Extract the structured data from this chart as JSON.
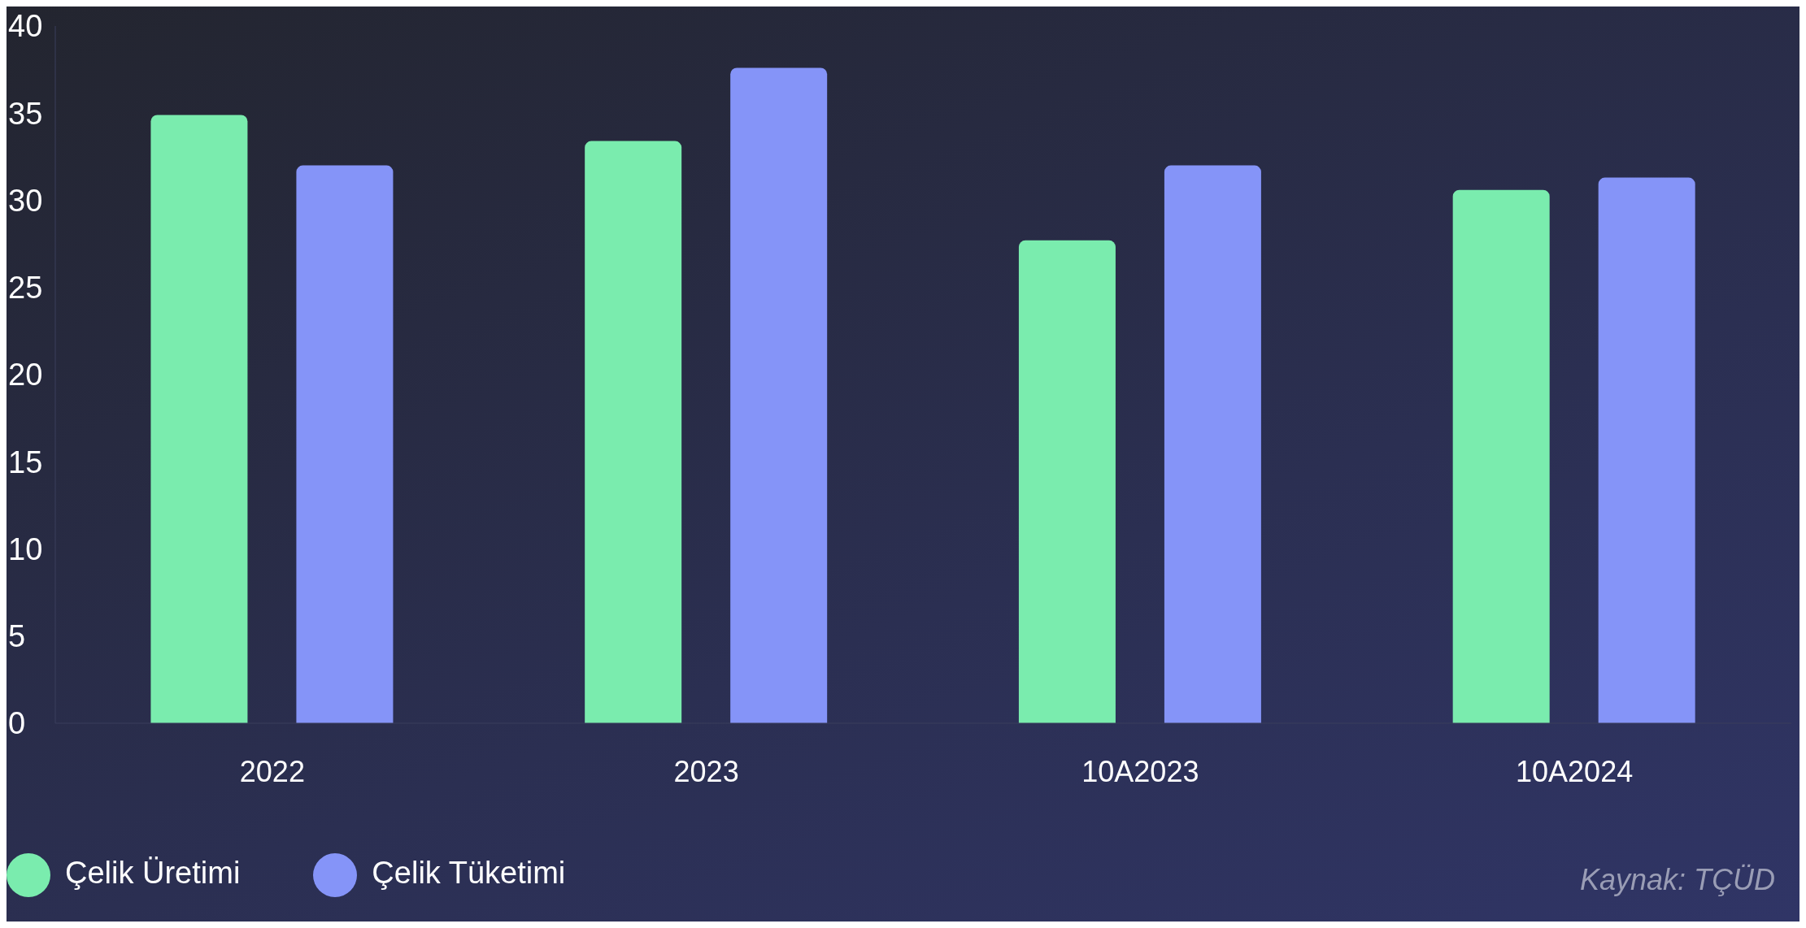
{
  "chart_data": {
    "type": "bar",
    "categories": [
      "2022",
      "2023",
      "10A2023",
      "10A2024"
    ],
    "series": [
      {
        "name": "Çelik Üretimi",
        "color": "#7aecae",
        "values": [
          34.9,
          33.4,
          27.7,
          30.6
        ]
      },
      {
        "name": "Çelik Tüketimi",
        "color": "#8594f8",
        "values": [
          32.0,
          37.6,
          32.0,
          31.3
        ]
      }
    ],
    "ylim": [
      0,
      40
    ],
    "yticks": [
      0,
      5,
      10,
      15,
      20,
      25,
      30,
      35,
      40
    ],
    "grid": false,
    "legend": "bottom left",
    "annotations": [
      "Kaynak: TÇÜD"
    ]
  }
}
